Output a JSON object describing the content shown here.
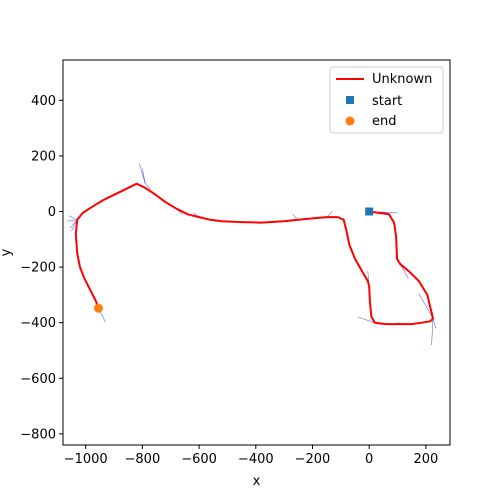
{
  "chart_data": {
    "type": "line",
    "title": "",
    "xlabel": "x",
    "ylabel": "y",
    "xlim": [
      -1080,
      285
    ],
    "ylim": [
      -840,
      545
    ],
    "xticks": [
      -1000,
      -800,
      -600,
      -400,
      -200,
      0,
      200
    ],
    "yticks": [
      -800,
      -600,
      -400,
      -200,
      0,
      200,
      400
    ],
    "grid": false,
    "legend_position": "top-right",
    "series": [
      {
        "name": "Unknown",
        "type": "line",
        "color": "#ff0000",
        "x": [
          0,
          35,
          70,
          88,
          95,
          98,
          110,
          140,
          175,
          205,
          225,
          215,
          185,
          150,
          110,
          60,
          20,
          8,
          3,
          0,
          -5,
          -25,
          -50,
          -70,
          -80,
          -90,
          -110,
          -150,
          -200,
          -250,
          -300,
          -380,
          -450,
          -520,
          -560,
          -600,
          -640,
          -680,
          -720,
          -760,
          -790,
          -820,
          -860,
          -900,
          -940,
          -980,
          -1010,
          -1030,
          -1035,
          -1030,
          -1020,
          -1005,
          -985,
          -965,
          -955
        ],
        "y": [
          0,
          -5,
          -10,
          -40,
          -90,
          -170,
          -190,
          -215,
          -250,
          -300,
          -385,
          -395,
          -400,
          -405,
          -405,
          -405,
          -400,
          -380,
          -330,
          -270,
          -250,
          -215,
          -170,
          -120,
          -70,
          -30,
          -20,
          -20,
          -25,
          -30,
          -35,
          -40,
          -38,
          -35,
          -30,
          -20,
          -10,
          10,
          35,
          65,
          85,
          100,
          80,
          60,
          40,
          15,
          -5,
          -30,
          -80,
          -150,
          -200,
          -240,
          -280,
          -320,
          -348
        ]
      },
      {
        "name": "start",
        "type": "scatter",
        "marker": "square",
        "color": "#1f77b4",
        "x": [
          0
        ],
        "y": [
          0
        ]
      },
      {
        "name": "end",
        "type": "scatter",
        "marker": "circle",
        "color": "#ff7f0e",
        "x": [
          -955
        ],
        "y": [
          -348
        ]
      }
    ],
    "heading_rays": [
      {
        "x": 0,
        "y": 0,
        "dx": 100,
        "dy": -5
      },
      {
        "x": 0,
        "y": 0,
        "dx": 60,
        "dy": -4
      },
      {
        "x": 98,
        "y": -110,
        "dx": 2,
        "dy": -50
      },
      {
        "x": 98,
        "y": -170,
        "dx": 40,
        "dy": -70
      },
      {
        "x": 225,
        "y": -385,
        "dx": 10,
        "dy": -35
      },
      {
        "x": 225,
        "y": -385,
        "dx": -5,
        "dy": -95
      },
      {
        "x": 225,
        "y": -385,
        "dx": -50,
        "dy": 90
      },
      {
        "x": 110,
        "y": -405,
        "dx": -10,
        "dy": 5
      },
      {
        "x": 20,
        "y": -400,
        "dx": -60,
        "dy": 20
      },
      {
        "x": 0,
        "y": -270,
        "dx": -5,
        "dy": 55
      },
      {
        "x": -150,
        "y": -20,
        "dx": 20,
        "dy": 20
      },
      {
        "x": -250,
        "y": -30,
        "dx": -20,
        "dy": 20
      },
      {
        "x": -600,
        "y": -20,
        "dx": -20,
        "dy": 15
      },
      {
        "x": -680,
        "y": 10,
        "dx": 20,
        "dy": -20
      },
      {
        "x": -790,
        "y": 100,
        "dx": -20,
        "dy": 70
      },
      {
        "x": -790,
        "y": 100,
        "dx": -10,
        "dy": 55
      },
      {
        "x": -790,
        "y": 100,
        "dx": 20,
        "dy": -20
      },
      {
        "x": -1030,
        "y": -30,
        "dx": -30,
        "dy": 15
      },
      {
        "x": -1030,
        "y": -30,
        "dx": -25,
        "dy": -30
      },
      {
        "x": -1030,
        "y": -30,
        "dx": -35,
        "dy": -5
      },
      {
        "x": -1030,
        "y": -30,
        "dx": -20,
        "dy": -40
      },
      {
        "x": -955,
        "y": -348,
        "dx": 25,
        "dy": -50
      }
    ],
    "heading_ray_color": "#3333dd"
  }
}
